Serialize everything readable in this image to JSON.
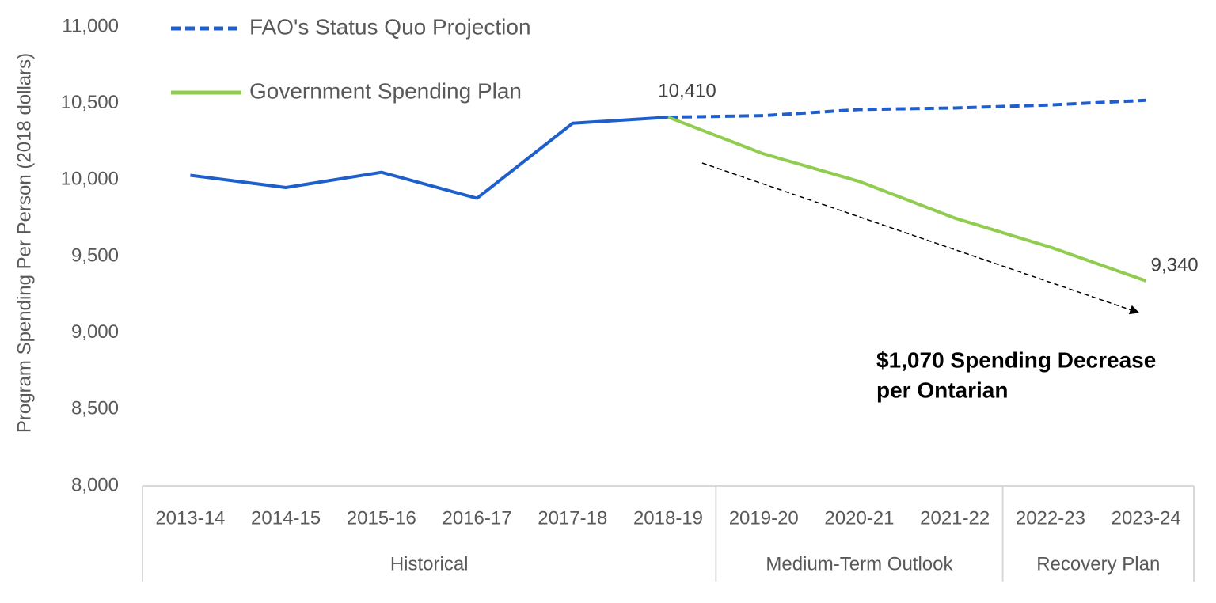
{
  "chart_data": {
    "type": "line",
    "ylabel": "Program Spending Per Person (2018 dollars)",
    "categories": [
      "2013-14",
      "2014-15",
      "2015-16",
      "2016-17",
      "2017-18",
      "2018-19",
      "2019-20",
      "2020-21",
      "2021-22",
      "2022-23",
      "2023-24"
    ],
    "groups": [
      {
        "label": "Historical",
        "count": 6
      },
      {
        "label": "Medium-Term Outlook",
        "count": 3
      },
      {
        "label": "Recovery Plan",
        "count": 2
      }
    ],
    "series": [
      {
        "color": "#1f5fcc",
        "dashed": false,
        "values": [
          10030,
          9950,
          10050,
          9880,
          10370,
          10410,
          null,
          null,
          null,
          null,
          null
        ]
      },
      {
        "name": "FAO's Status Quo Projection",
        "color": "#1f5fcc",
        "dashed": true,
        "values": [
          null,
          null,
          null,
          null,
          null,
          10410,
          10420,
          10460,
          10470,
          10490,
          10520
        ]
      },
      {
        "name": "Government Spending Plan",
        "color": "#8fcc4f",
        "dashed": false,
        "values": [
          null,
          null,
          null,
          null,
          null,
          10410,
          10170,
          9990,
          9750,
          9560,
          9340
        ],
        "value_labels": [
          null,
          null,
          null,
          null,
          null,
          "10,410",
          null,
          null,
          null,
          null,
          "9,340"
        ]
      }
    ],
    "annotation": [
      "$1,070 Spending Decrease",
      "per Ontarian"
    ],
    "ylim": [
      8000,
      11000
    ],
    "yticks": [
      {
        "value": 8000,
        "label": "8,000"
      },
      {
        "value": 8500,
        "label": "8,500"
      },
      {
        "value": 9000,
        "label": "9,000"
      },
      {
        "value": 9500,
        "label": "9,500"
      },
      {
        "value": 10000,
        "label": "10,000"
      },
      {
        "value": 10500,
        "label": "10,500"
      },
      {
        "value": 11000,
        "label": "11,000"
      }
    ],
    "grid": false,
    "legend": "top-left"
  }
}
